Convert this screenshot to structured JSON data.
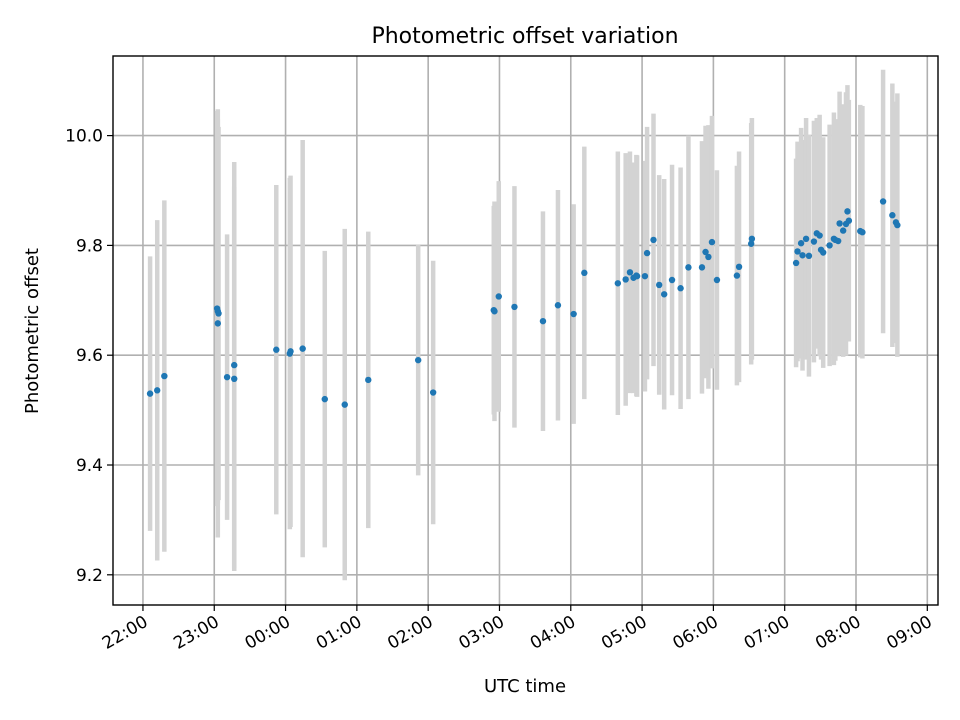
{
  "chart_data": {
    "type": "scatter",
    "title": "Photometric offset variation",
    "xlabel": "UTC time",
    "ylabel": "Photometric offset",
    "xlim": [
      -0.42,
      11.15
    ],
    "ylim": [
      9.145,
      10.145
    ],
    "grid": true,
    "x_unit": "hours after 22:00 UTC",
    "xticks": [
      {
        "value": 0,
        "label": "22:00"
      },
      {
        "value": 1,
        "label": "23:00"
      },
      {
        "value": 2,
        "label": "00:00"
      },
      {
        "value": 3,
        "label": "01:00"
      },
      {
        "value": 4,
        "label": "02:00"
      },
      {
        "value": 5,
        "label": "03:00"
      },
      {
        "value": 6,
        "label": "04:00"
      },
      {
        "value": 7,
        "label": "05:00"
      },
      {
        "value": 8,
        "label": "06:00"
      },
      {
        "value": 9,
        "label": "07:00"
      },
      {
        "value": 10,
        "label": "08:00"
      },
      {
        "value": 11,
        "label": "09:00"
      }
    ],
    "yticks": [
      {
        "value": 9.2,
        "label": "9.2"
      },
      {
        "value": 9.4,
        "label": "9.4"
      },
      {
        "value": 9.6,
        "label": "9.6"
      },
      {
        "value": 9.8,
        "label": "9.8"
      },
      {
        "value": 10.0,
        "label": "10.0"
      }
    ],
    "colors": {
      "point": "#1f77b4",
      "errorbar": "#d3d3d3",
      "grid": "#b0b0b0"
    },
    "series": [
      {
        "x": [
          0.1,
          0.2,
          0.3,
          1.04,
          1.05,
          1.06,
          1.05,
          1.18,
          1.28,
          1.28,
          1.87,
          2.06,
          2.07,
          2.24,
          2.55,
          2.83,
          3.16,
          3.86,
          4.07,
          4.92,
          4.93,
          4.99,
          5.21,
          5.61,
          5.82,
          6.04,
          6.19,
          6.66,
          6.77,
          6.83,
          6.88,
          6.92,
          6.93,
          7.04,
          7.07,
          7.16,
          7.24,
          7.31,
          7.42,
          7.54,
          7.65,
          7.84,
          7.89,
          7.93,
          7.98,
          8.05,
          8.33,
          8.36,
          8.53,
          8.54,
          9.16,
          9.18,
          9.23,
          9.25,
          9.3,
          9.34,
          9.41,
          9.45,
          9.49,
          9.51,
          9.54,
          9.63,
          9.69,
          9.71,
          9.75,
          9.77,
          9.82,
          9.86,
          9.88,
          9.9,
          10.06,
          10.09,
          10.38,
          10.51,
          10.56,
          10.58
        ],
        "y": [
          9.53,
          9.536,
          9.562,
          9.685,
          9.68,
          9.676,
          9.658,
          9.56,
          9.582,
          9.557,
          9.61,
          9.603,
          9.607,
          9.612,
          9.52,
          9.51,
          9.555,
          9.591,
          9.532,
          9.682,
          9.68,
          9.707,
          9.688,
          9.662,
          9.691,
          9.675,
          9.75,
          9.731,
          9.738,
          9.751,
          9.741,
          9.745,
          9.744,
          9.744,
          9.786,
          9.81,
          9.728,
          9.711,
          9.737,
          9.722,
          9.76,
          9.76,
          9.788,
          9.779,
          9.806,
          9.737,
          9.745,
          9.761,
          9.803,
          9.812,
          9.768,
          9.789,
          9.804,
          9.782,
          9.812,
          9.781,
          9.807,
          9.822,
          9.818,
          9.792,
          9.787,
          9.8,
          9.812,
          9.81,
          9.808,
          9.84,
          9.827,
          9.839,
          9.862,
          9.845,
          9.826,
          9.824,
          9.88,
          9.855,
          9.842,
          9.837
        ],
        "yerr": [
          0.25,
          0.31,
          0.32,
          0.36,
          0.35,
          0.34,
          0.39,
          0.26,
          0.37,
          0.35,
          0.3,
          0.32,
          0.32,
          0.38,
          0.27,
          0.32,
          0.27,
          0.21,
          0.24,
          0.19,
          0.2,
          0.21,
          0.22,
          0.2,
          0.21,
          0.2,
          0.23,
          0.24,
          0.23,
          0.22,
          0.21,
          0.22,
          0.22,
          0.21,
          0.23,
          0.23,
          0.2,
          0.21,
          0.21,
          0.22,
          0.24,
          0.23,
          0.23,
          0.24,
          0.23,
          0.2,
          0.2,
          0.21,
          0.22,
          0.22,
          0.19,
          0.2,
          0.21,
          0.21,
          0.22,
          0.22,
          0.22,
          0.21,
          0.22,
          0.2,
          0.21,
          0.22,
          0.23,
          0.22,
          0.21,
          0.24,
          0.23,
          0.24,
          0.23,
          0.22,
          0.23,
          0.23,
          0.24,
          0.24,
          0.22,
          0.24
        ]
      }
    ]
  }
}
